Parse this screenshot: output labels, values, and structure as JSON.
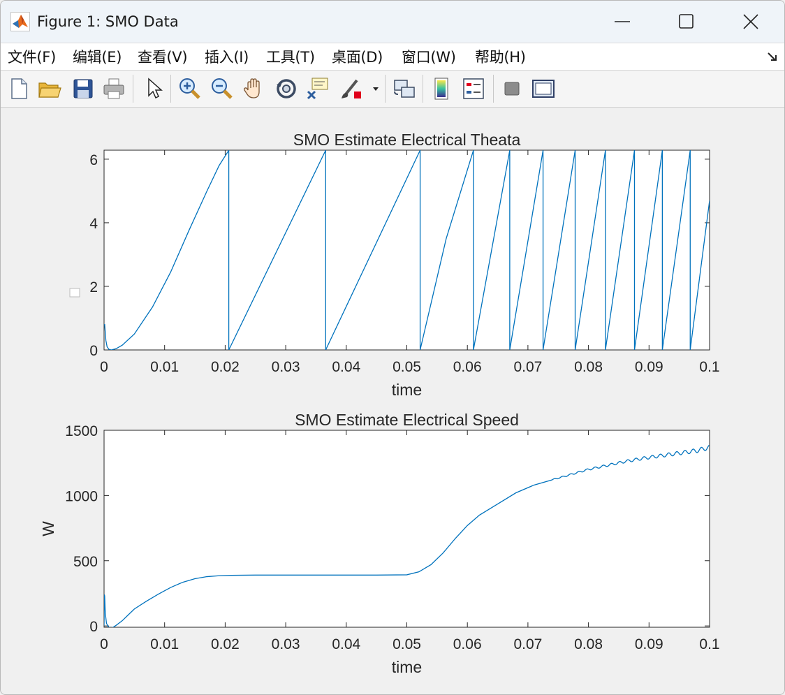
{
  "window": {
    "title": "Figure 1: SMO Data",
    "app_icon": "matlab-logo-icon",
    "controls": [
      "minimize-icon",
      "maximize-icon",
      "close-icon"
    ]
  },
  "menu": {
    "items": [
      {
        "label": "文件(F)",
        "key": "file"
      },
      {
        "label": "编辑(E)",
        "key": "edit"
      },
      {
        "label": "查看(V)",
        "key": "view"
      },
      {
        "label": "插入(I)",
        "key": "insert"
      },
      {
        "label": "工具(T)",
        "key": "tools"
      },
      {
        "label": "桌面(D)",
        "key": "desktop"
      },
      {
        "label": "窗口(W)",
        "key": "window"
      },
      {
        "label": "帮助(H)",
        "key": "help"
      }
    ],
    "dock_icon": "dock-arrow-icon"
  },
  "toolbar": {
    "tools": [
      "new-figure-icon",
      "open-icon",
      "save-icon",
      "print-icon",
      "pointer-icon",
      "zoom-in-icon",
      "zoom-out-icon",
      "pan-hand-icon",
      "rotate-3d-icon",
      "data-cursor-icon",
      "brush-icon",
      "link-plot-icon",
      "colorbar-icon",
      "legend-icon",
      "hide-plot-tools-icon",
      "show-plot-tools-icon"
    ]
  },
  "colors": {
    "line": "#0072bd",
    "axes_bg": "#ffffff",
    "figure_bg": "#f0f0f0"
  },
  "chart_data": [
    {
      "type": "line",
      "title": "SMO  Estimate Electrical Theata",
      "xlabel": "time",
      "ylabel": "",
      "xlim": [
        0,
        0.1
      ],
      "ylim": [
        0,
        6.2832
      ],
      "xticks": [
        "0",
        "0.01",
        "0.02",
        "0.03",
        "0.04",
        "0.05",
        "0.06",
        "0.07",
        "0.08",
        "0.09",
        "0.1"
      ],
      "yticks": [
        "0",
        "2",
        "4",
        "6"
      ],
      "series": [
        {
          "x": [
            0,
            0.0001,
            0.0003,
            0.0005,
            0.0008,
            0.0012,
            0.002,
            0.003,
            0.005,
            0.008,
            0.011,
            0.014,
            0.017,
            0.019,
            0.0206,
            0.0206,
            0.0366,
            0.0366,
            0.0522,
            0.0522,
            0.0565,
            0.061,
            0.061,
            0.067,
            0.067,
            0.0725,
            0.0725,
            0.0778,
            0.0778,
            0.0828,
            0.0828,
            0.0876,
            0.0876,
            0.0922,
            0.0922,
            0.0968,
            0.0968,
            0.1
          ],
          "y": [
            0.8,
            0.8,
            0.3,
            0.1,
            0.02,
            0.0,
            0.04,
            0.15,
            0.5,
            1.35,
            2.45,
            3.75,
            5.0,
            5.8,
            6.28,
            0.0,
            6.28,
            0.0,
            6.28,
            0.0,
            3.5,
            6.28,
            0.0,
            6.28,
            0.0,
            6.28,
            0.0,
            6.28,
            0.0,
            6.28,
            0.0,
            6.28,
            0.0,
            6.28,
            0.0,
            6.28,
            0.0,
            4.7
          ]
        }
      ]
    },
    {
      "type": "line",
      "title": "SMO  Estimate Electrical Speed",
      "xlabel": "time",
      "ylabel": "W",
      "xlim": [
        0,
        0.1
      ],
      "ylim": [
        -10,
        1500
      ],
      "xticks": [
        "0",
        "0.01",
        "0.02",
        "0.03",
        "0.04",
        "0.05",
        "0.06",
        "0.07",
        "0.08",
        "0.09",
        "0.1"
      ],
      "yticks": [
        "0",
        "500",
        "1000",
        "1500"
      ],
      "series": [
        {
          "x": [
            0,
            5e-05,
            0.0001,
            0.0002,
            0.0004,
            0.0007,
            0.001,
            0.0015,
            0.002,
            0.003,
            0.004,
            0.005,
            0.007,
            0.009,
            0.011,
            0.013,
            0.015,
            0.017,
            0.019,
            0.021,
            0.025,
            0.03,
            0.035,
            0.04,
            0.045,
            0.05,
            0.052,
            0.054,
            0.056,
            0.058,
            0.06,
            0.062,
            0.065,
            0.068,
            0.071,
            0.074,
            0.077,
            0.08,
            0.083,
            0.086,
            0.089,
            0.092,
            0.095,
            0.098,
            0.1
          ],
          "y": [
            0,
            240,
            230,
            100,
            20,
            -5,
            -15,
            -10,
            5,
            40,
            85,
            130,
            190,
            245,
            295,
            335,
            362,
            378,
            385,
            388,
            390,
            390,
            390,
            390,
            390,
            392,
            415,
            470,
            560,
            670,
            770,
            850,
            935,
            1020,
            1080,
            1120,
            1160,
            1200,
            1230,
            1260,
            1285,
            1305,
            1325,
            1345,
            1370
          ]
        }
      ]
    }
  ]
}
